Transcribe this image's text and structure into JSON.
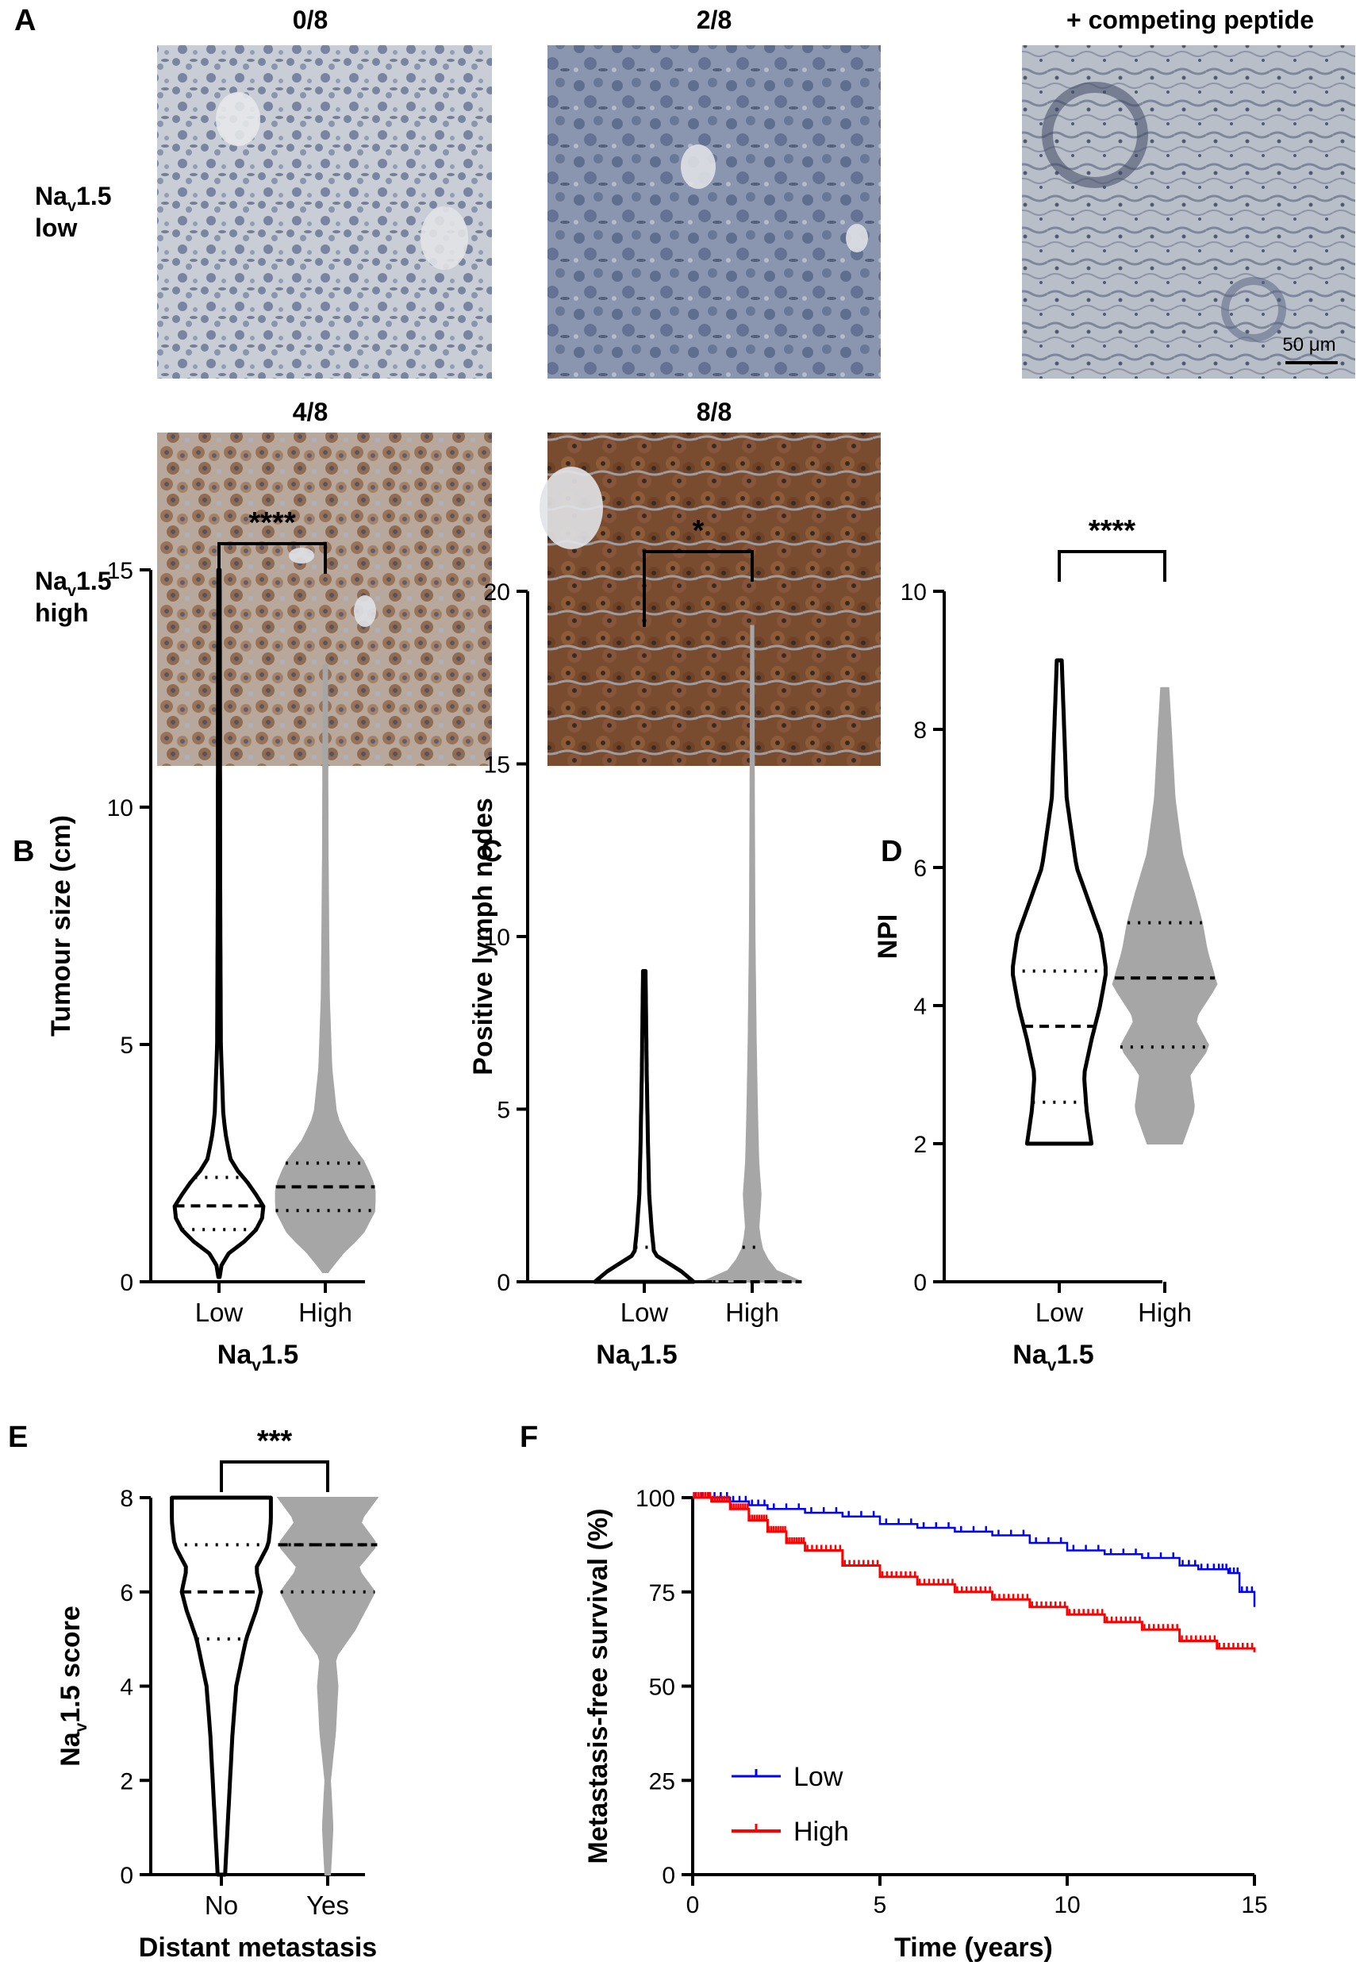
{
  "panel_a": {
    "letter": "A",
    "images": [
      {
        "title": "0/8",
        "stain": "low"
      },
      {
        "title": "2/8",
        "stain": "low"
      },
      {
        "title": "+ competing peptide",
        "stain": "control"
      },
      {
        "title": "4/8",
        "stain": "high"
      },
      {
        "title": "8/8",
        "stain": "high"
      }
    ],
    "row_low": {
      "main": "Na",
      "sub": "v",
      "rest": "1.5",
      "line2": "low"
    },
    "row_high": {
      "main": "Na",
      "sub": "v",
      "rest": "1.5",
      "line2": "high"
    },
    "scale_bar": "50 μm",
    "colors": {
      "low_bg": "#c7ccd3",
      "low_tissue": "#5f6f91",
      "high_bg": "#d9d2cb",
      "high_tissue": "#8a5a3b"
    }
  },
  "chart_data": [
    {
      "panel": "B",
      "type": "violin",
      "categories": [
        "Low",
        "High"
      ],
      "xlabel": {
        "main": "Na",
        "sub": "v",
        "rest": "1.5"
      },
      "ylabel": "Tumour size (cm)",
      "ylim": [
        0,
        15
      ],
      "yticks": [
        0,
        5,
        10,
        15
      ],
      "significance": "****",
      "series": [
        {
          "category": "Low",
          "color": "#000000",
          "style": "outline",
          "max": 15,
          "min": 0.1,
          "profile": [
            [
              0.1,
              0.5
            ],
            [
              0.5,
              3
            ],
            [
              1.0,
              28
            ],
            [
              1.5,
              38
            ],
            [
              2.0,
              26
            ],
            [
              2.5,
              10
            ],
            [
              3.0,
              6
            ],
            [
              3.5,
              3.5
            ],
            [
              5,
              1.5
            ],
            [
              8,
              1
            ],
            [
              12,
              0.8
            ],
            [
              15,
              0.5
            ]
          ],
          "median": 1.6,
          "q1": 1.1,
          "q3": 2.2
        },
        {
          "category": "High",
          "color": "#a6a6a6",
          "style": "filled",
          "max": 13,
          "min": 0.2,
          "profile": [
            [
              0.2,
              2
            ],
            [
              0.6,
              14
            ],
            [
              1.0,
              30
            ],
            [
              1.5,
              40
            ],
            [
              2.0,
              40
            ],
            [
              2.5,
              32
            ],
            [
              3.0,
              18
            ],
            [
              3.5,
              9
            ],
            [
              4.5,
              5
            ],
            [
              6,
              3
            ],
            [
              9,
              2
            ],
            [
              13,
              1.5
            ]
          ],
          "median": 2.0,
          "q1": 1.5,
          "q3": 2.5
        }
      ]
    },
    {
      "panel": "C",
      "type": "violin",
      "categories": [
        "Low",
        "High"
      ],
      "xlabel": {
        "main": "Na",
        "sub": "v",
        "rest": "1.5"
      },
      "ylabel": "Positive lymph nodes",
      "ylim": [
        0,
        20
      ],
      "yticks": [
        0,
        5,
        10,
        15,
        20
      ],
      "significance": "*",
      "series": [
        {
          "category": "Low",
          "color": "#000000",
          "style": "outline",
          "max": 9,
          "min": 0,
          "profile": [
            [
              0,
              40
            ],
            [
              0.3,
              30
            ],
            [
              0.8,
              8
            ],
            [
              1.5,
              6
            ],
            [
              2.5,
              4
            ],
            [
              4,
              3
            ],
            [
              6,
              2
            ],
            [
              9,
              1
            ]
          ],
          "median": 0,
          "q1": 0,
          "q3": 1
        },
        {
          "category": "High",
          "color": "#a6a6a6",
          "style": "filled",
          "max": 19,
          "min": 0,
          "profile": [
            [
              0,
              40
            ],
            [
              0.3,
              20
            ],
            [
              0.8,
              9
            ],
            [
              1.5,
              5
            ],
            [
              2.5,
              7
            ],
            [
              3.5,
              5
            ],
            [
              5,
              4
            ],
            [
              7,
              3
            ],
            [
              10,
              2
            ],
            [
              14,
              1.5
            ],
            [
              19,
              1
            ]
          ],
          "median": 0,
          "q1": 0,
          "q3": 1
        }
      ]
    },
    {
      "panel": "D",
      "type": "violin",
      "categories": [
        "Low",
        "High"
      ],
      "xlabel": {
        "main": "Na",
        "sub": "v",
        "rest": "1.5"
      },
      "ylabel": "NPI",
      "ylim": [
        0,
        10
      ],
      "yticks": [
        0,
        2,
        4,
        6,
        8,
        10
      ],
      "significance": "****",
      "series": [
        {
          "category": "Low",
          "color": "#000000",
          "style": "outline",
          "max": 9,
          "min": 2,
          "profile": [
            [
              2,
              26
            ],
            [
              2.5,
              22
            ],
            [
              3.0,
              20
            ],
            [
              3.5,
              26
            ],
            [
              4.0,
              33
            ],
            [
              4.5,
              38
            ],
            [
              5.0,
              34
            ],
            [
              5.5,
              24
            ],
            [
              6.0,
              14
            ],
            [
              7.0,
              6
            ],
            [
              8.0,
              4
            ],
            [
              9.0,
              2
            ]
          ],
          "median": 3.7,
          "q1": 2.6,
          "q3": 4.5
        },
        {
          "category": "High",
          "color": "#a6a6a6",
          "style": "filled",
          "max": 8.6,
          "min": 2,
          "profile": [
            [
              2,
              14
            ],
            [
              2.5,
              24
            ],
            [
              3.0,
              20
            ],
            [
              3.4,
              36
            ],
            [
              3.8,
              24
            ],
            [
              4.3,
              42
            ],
            [
              4.8,
              34
            ],
            [
              5.2,
              30
            ],
            [
              5.6,
              24
            ],
            [
              6.2,
              14
            ],
            [
              7.0,
              8
            ],
            [
              8.0,
              5
            ],
            [
              8.6,
              3
            ]
          ],
          "median": 4.4,
          "q1": 3.4,
          "q3": 5.2
        }
      ]
    },
    {
      "panel": "E",
      "type": "violin",
      "categories": [
        "No",
        "Yes"
      ],
      "xlabel": "Distant metastasis",
      "ylabel": {
        "main": "Na",
        "sub": "v",
        "rest": "1.5 score"
      },
      "ylim": [
        0,
        8
      ],
      "yticks": [
        0,
        2,
        4,
        6,
        8
      ],
      "significance": "***",
      "series": [
        {
          "category": "No",
          "color": "#000000",
          "style": "outline",
          "max": 8,
          "min": 0,
          "profile": [
            [
              0,
              3
            ],
            [
              0.5,
              4
            ],
            [
              1.5,
              6
            ],
            [
              3,
              9
            ],
            [
              4,
              12
            ],
            [
              5,
              20
            ],
            [
              5.6,
              28
            ],
            [
              6,
              32
            ],
            [
              6.5,
              28
            ],
            [
              7,
              38
            ],
            [
              7.5,
              40
            ],
            [
              8,
              40
            ]
          ],
          "median": 6,
          "q1": 5,
          "q3": 7
        },
        {
          "category": "Yes",
          "color": "#a6a6a6",
          "style": "filled",
          "max": 8,
          "min": 0,
          "profile": [
            [
              0,
              2
            ],
            [
              1,
              4
            ],
            [
              2,
              2
            ],
            [
              3,
              6
            ],
            [
              4,
              8
            ],
            [
              4.6,
              6
            ],
            [
              5.2,
              22
            ],
            [
              6,
              38
            ],
            [
              6.5,
              24
            ],
            [
              7,
              40
            ],
            [
              7.5,
              26
            ],
            [
              8,
              40
            ]
          ],
          "median": 7,
          "q1": 6,
          "q3": 7
        }
      ]
    },
    {
      "panel": "F",
      "type": "line",
      "xlabel": "Time (years)",
      "ylabel": "Metastasis-free survival (%)",
      "xlim": [
        0,
        15
      ],
      "ylim": [
        0,
        100
      ],
      "xticks": [
        0,
        5,
        10,
        15
      ],
      "yticks": [
        0,
        25,
        50,
        75,
        100
      ],
      "legend_position": "bottom-left",
      "series": [
        {
          "name": "Low",
          "color": "#0000ff",
          "x": [
            0,
            0.5,
            1,
            1.5,
            2,
            3,
            4,
            5,
            6,
            7,
            8,
            9,
            10,
            11,
            12,
            13,
            13.5,
            14,
            14.3,
            14.6,
            15
          ],
          "y": [
            100,
            100,
            99,
            98,
            97,
            96,
            95,
            93,
            92,
            91,
            90,
            88,
            86,
            85,
            84,
            82,
            81,
            81,
            80,
            75,
            71
          ]
        },
        {
          "name": "High",
          "color": "#ff0000",
          "x": [
            0,
            0.5,
            1,
            1.5,
            2,
            2.5,
            3,
            4,
            5,
            6,
            7,
            8,
            9,
            10,
            11,
            12,
            13,
            14,
            15
          ],
          "y": [
            100,
            99,
            97,
            94,
            91,
            88,
            86,
            82,
            79,
            77,
            75,
            73,
            71,
            69,
            67,
            65,
            62,
            60,
            59
          ]
        }
      ]
    }
  ]
}
